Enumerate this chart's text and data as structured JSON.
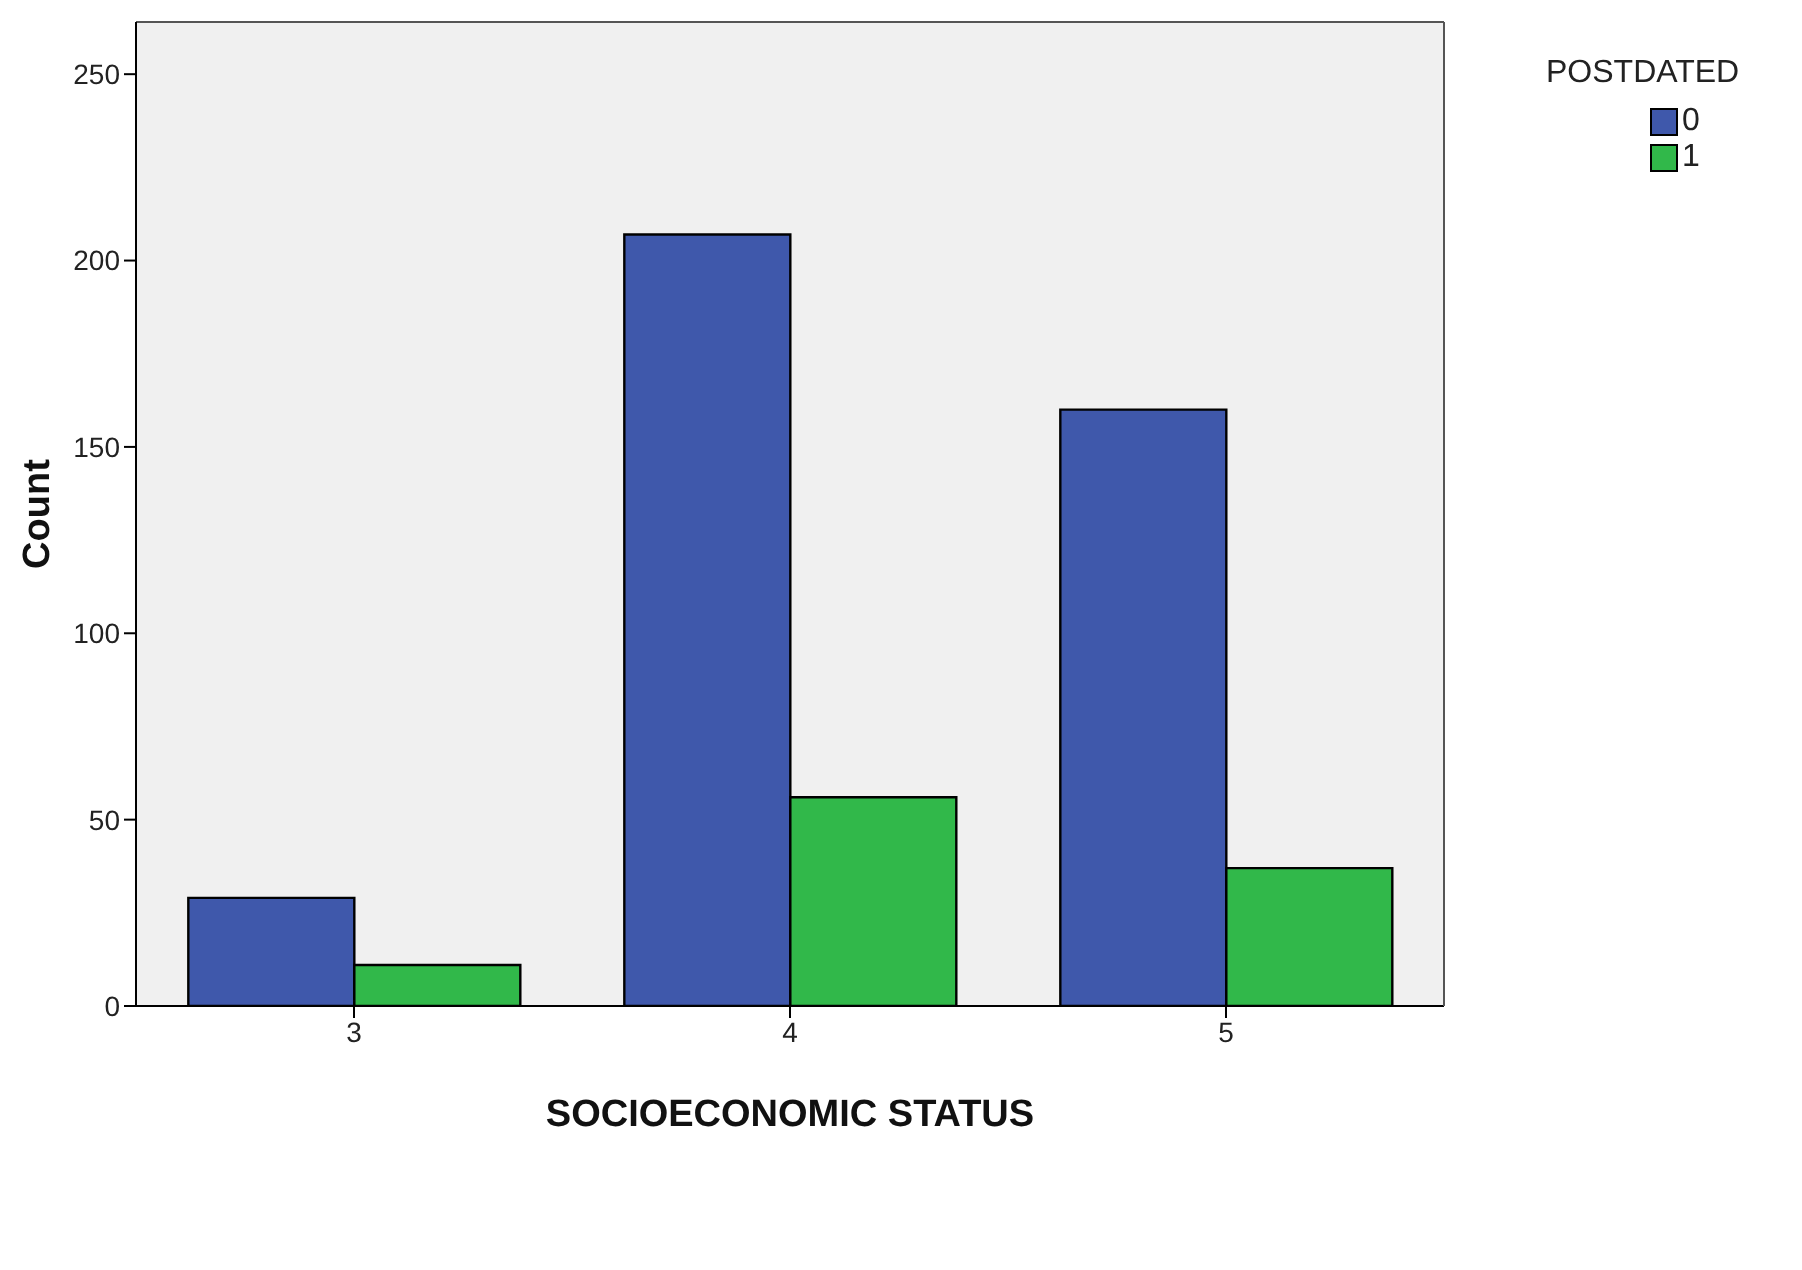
{
  "chart_data": {
    "type": "bar",
    "xlabel": "SOCIOECONOMIC STATUS",
    "ylabel": "Count",
    "legend_title": "POSTDATED",
    "categories": [
      "3",
      "4",
      "5"
    ],
    "series": [
      {
        "name": "0",
        "color": "#3f58ab",
        "values": [
          29,
          207,
          160
        ]
      },
      {
        "name": "1",
        "color": "#31b84a",
        "values": [
          11,
          56,
          37
        ]
      }
    ],
    "ylim": [
      0,
      264
    ],
    "yticks": [
      0,
      50,
      100,
      150,
      200,
      250
    ],
    "grid": false,
    "legend": "top right"
  }
}
